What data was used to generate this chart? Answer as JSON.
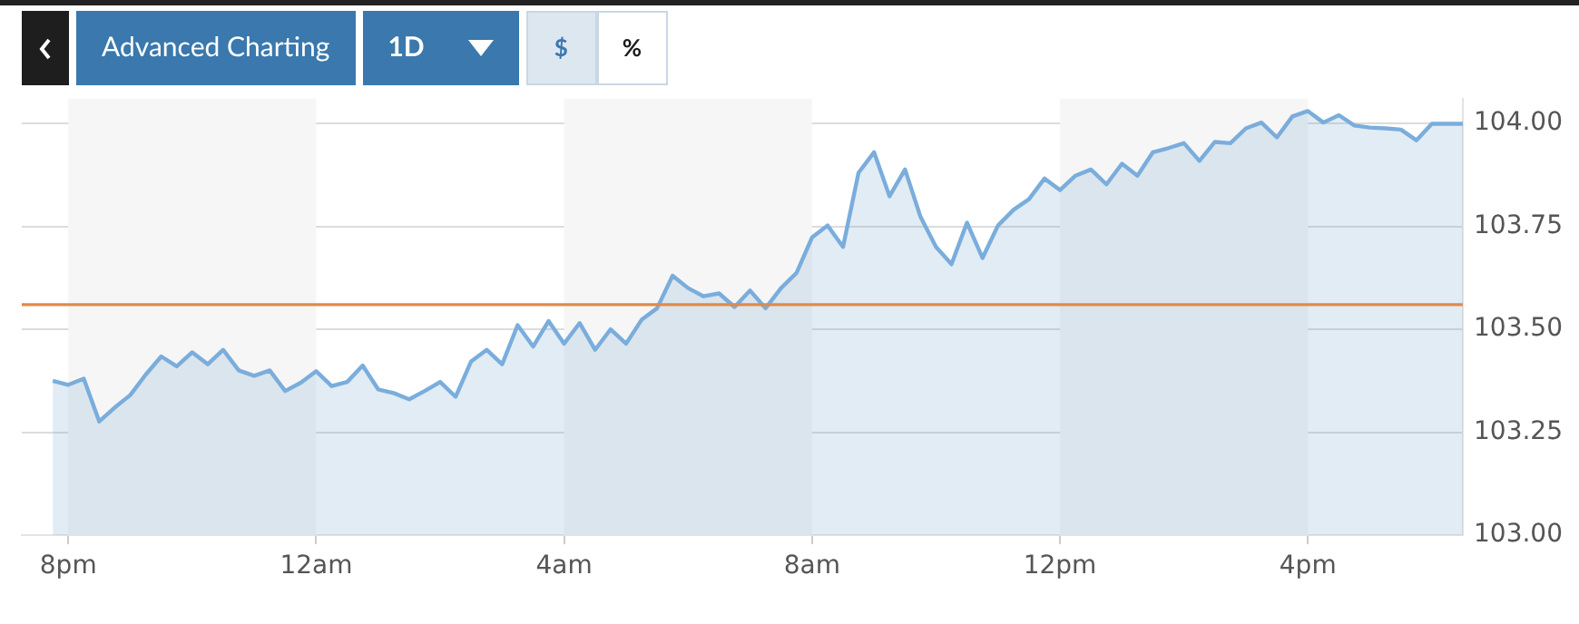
{
  "chart_data": {
    "type": "area",
    "annotations": [
      "Advanced Charting",
      "1D",
      "$",
      "%"
    ],
    "categories": [
      null,
      null,
      null,
      "8pm",
      null,
      null,
      null,
      null,
      null,
      null,
      null,
      null,
      null,
      null,
      null,
      null,
      null,
      null,
      null,
      "12am",
      null,
      null,
      null,
      null,
      null,
      null,
      null,
      null,
      null,
      null,
      null,
      null,
      null,
      null,
      null,
      "4am",
      null,
      null,
      null,
      null,
      null,
      null,
      null,
      null,
      null,
      null,
      null,
      null,
      null,
      null,
      null,
      "8am",
      null,
      null,
      null,
      null,
      null,
      null,
      null,
      null,
      null,
      null,
      null,
      null,
      null,
      null,
      null,
      "12pm",
      null,
      null,
      null,
      null,
      null,
      null,
      null,
      null,
      null,
      null,
      null,
      null,
      null,
      null,
      null,
      "4pm",
      null,
      null,
      null,
      null,
      null,
      null,
      null,
      null,
      null,
      null
    ],
    "series": [
      {
        "color": "#7aaddc",
        "values": [
          null,
          null,
          103.375,
          103.365,
          103.38,
          103.276,
          103.31,
          103.34,
          103.39,
          103.434,
          103.41,
          103.444,
          103.415,
          103.45,
          103.4,
          103.387,
          103.4,
          103.35,
          103.37,
          103.398,
          103.362,
          103.372,
          103.412,
          103.354,
          103.345,
          103.33,
          103.35,
          103.372,
          103.336,
          103.422,
          103.45,
          103.415,
          103.51,
          103.458,
          103.52,
          103.465,
          103.515,
          103.45,
          103.5,
          103.465,
          103.523,
          103.551,
          103.63,
          103.6,
          103.58,
          103.587,
          103.554,
          103.594,
          103.551,
          103.6,
          103.637,
          103.723,
          103.752,
          103.7,
          103.88,
          103.93,
          103.823,
          103.888,
          103.773,
          103.7,
          103.658,
          103.759,
          103.673,
          103.752,
          103.79,
          103.816,
          103.866,
          103.838,
          103.873,
          103.888,
          103.852,
          103.902,
          103.873,
          103.93,
          103.94,
          103.952,
          103.909,
          103.955,
          103.952,
          103.988,
          104.002,
          103.966,
          104.017,
          104.03,
          104.002,
          104.02,
          103.995,
          103.99,
          103.988,
          103.985,
          103.959,
          103.999,
          103.999,
          103.999
        ]
      }
    ],
    "ylim": [
      103,
      104.06
    ],
    "yticks": [
      {
        "value": 103,
        "label": "103.00"
      },
      {
        "value": 103.25,
        "label": "103.25"
      },
      {
        "value": 103.5,
        "label": "103.50"
      },
      {
        "value": 103.75,
        "label": "103.75"
      },
      {
        "value": 104,
        "label": "104.00"
      }
    ],
    "ref_lines": [
      {
        "axis": "y",
        "value": 103.56,
        "color": "#e08a4a"
      }
    ],
    "bands": [
      {
        "axis": "x",
        "from": "8pm",
        "to": "12am",
        "color": "#f6f6f6"
      },
      {
        "axis": "x",
        "from": "4am",
        "to": "8am",
        "color": "#f6f6f6"
      },
      {
        "axis": "x",
        "from": "12pm",
        "to": "4pm",
        "color": "#f6f6f6"
      }
    ],
    "grid": "y",
    "legend": false,
    "marker": "none",
    "line_style": "solid"
  }
}
